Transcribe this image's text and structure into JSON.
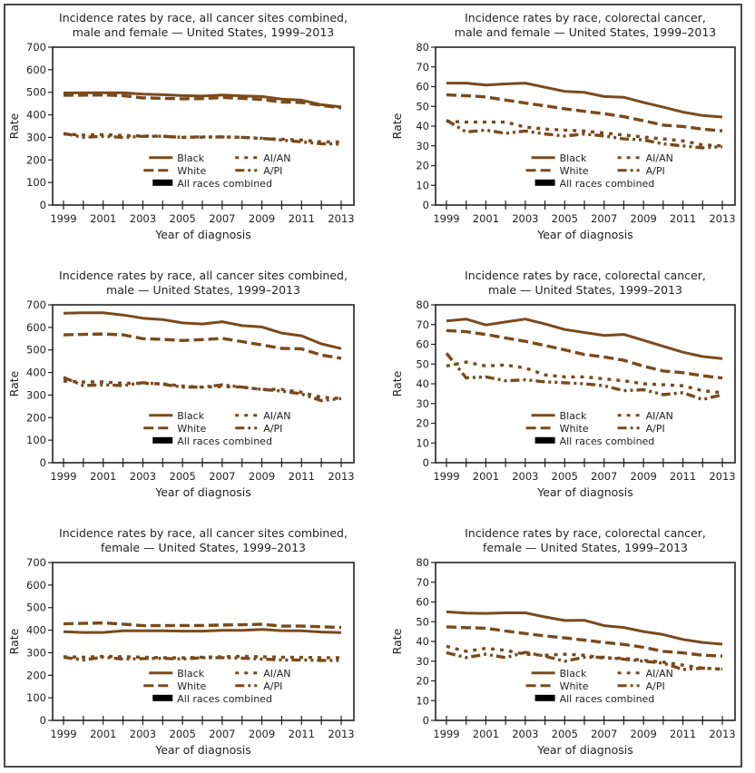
{
  "figure": {
    "colors": {
      "race": "#7a4a1c",
      "all_races": "#9a9a9a",
      "axis": "#222222"
    },
    "legend": [
      {
        "key": "black",
        "label": "Black",
        "style": "solid"
      },
      {
        "key": "aian",
        "label": "AI/AN",
        "style": "dotted"
      },
      {
        "key": "white",
        "label": "White",
        "style": "dashed"
      },
      {
        "key": "api",
        "label": "A/PI",
        "style": "dashdot"
      },
      {
        "key": "all",
        "label": "All races combined",
        "style": "band"
      }
    ]
  },
  "chart_data": [
    {
      "type": "line",
      "title": [
        "Incidence rates by race, all cancer sites combined,",
        "male and female — United States, 1999–2013"
      ],
      "xlabel": "Year of diagnosis",
      "ylabel": "Rate",
      "ylim": [
        0,
        700
      ],
      "yticks": [
        0,
        100,
        200,
        300,
        400,
        500,
        600,
        700
      ],
      "x": [
        1999,
        2000,
        2001,
        2002,
        2003,
        2004,
        2005,
        2006,
        2007,
        2008,
        2009,
        2010,
        2011,
        2012,
        2013
      ],
      "xtick_labels": [
        "1999",
        "2001",
        "2003",
        "2005",
        "2007",
        "2009",
        "2011",
        "2013"
      ],
      "legend_position": "lower-center",
      "series": [
        {
          "name": "Black",
          "key": "black",
          "values": [
            497,
            498,
            498,
            498,
            492,
            489,
            485,
            483,
            488,
            484,
            481,
            470,
            465,
            445,
            435
          ]
        },
        {
          "name": "White",
          "key": "white",
          "values": [
            487,
            487,
            488,
            485,
            475,
            473,
            471,
            472,
            477,
            473,
            468,
            457,
            455,
            442,
            431
          ]
        },
        {
          "name": "All races combined",
          "key": "all",
          "values": [
            482,
            483,
            484,
            481,
            470,
            468,
            466,
            467,
            471,
            467,
            462,
            452,
            450,
            437,
            427
          ]
        },
        {
          "name": "AI/AN",
          "key": "aian",
          "values": [
            315,
            310,
            312,
            308,
            306,
            305,
            300,
            301,
            302,
            300,
            295,
            292,
            288,
            280,
            280
          ]
        },
        {
          "name": "A/PI",
          "key": "api",
          "values": [
            318,
            300,
            305,
            300,
            305,
            305,
            300,
            302,
            302,
            300,
            296,
            288,
            280,
            272,
            270
          ]
        }
      ]
    },
    {
      "type": "line",
      "title": [
        "Incidence rates by race, colorectal cancer,",
        "male and female — United States, 1999–2013"
      ],
      "xlabel": "Year of diagnosis",
      "ylabel": "Rate",
      "ylim": [
        0,
        80
      ],
      "yticks": [
        0,
        10,
        20,
        30,
        40,
        50,
        60,
        70,
        80
      ],
      "x": [
        1999,
        2000,
        2001,
        2002,
        2003,
        2004,
        2005,
        2006,
        2007,
        2008,
        2009,
        2010,
        2011,
        2012,
        2013
      ],
      "xtick_labels": [
        "1999",
        "2001",
        "2003",
        "2005",
        "2007",
        "2009",
        "2011",
        "2013"
      ],
      "legend_position": "lower-center",
      "series": [
        {
          "name": "Black",
          "key": "black",
          "values": [
            61.8,
            61.8,
            60.8,
            61.4,
            61.8,
            59.7,
            57.6,
            57.1,
            55.0,
            54.6,
            52.0,
            49.6,
            47.1,
            45.4,
            44.6
          ]
        },
        {
          "name": "White",
          "key": "white",
          "values": [
            55.8,
            55.4,
            54.8,
            53.2,
            51.7,
            50.3,
            48.8,
            47.5,
            46.3,
            44.8,
            42.7,
            40.5,
            39.8,
            38.5,
            37.6
          ]
        },
        {
          "name": "All races combined",
          "key": "all",
          "values": [
            57.0,
            56.6,
            56.0,
            54.5,
            53.0,
            51.6,
            50.1,
            48.8,
            47.6,
            46.2,
            44.0,
            41.8,
            41.1,
            39.8,
            38.9
          ]
        },
        {
          "name": "AI/AN",
          "key": "aian",
          "values": [
            42.5,
            42.0,
            42.0,
            42.0,
            39.5,
            38.5,
            38.0,
            37.5,
            36.5,
            35.5,
            34.5,
            33.5,
            32.5,
            30.5,
            30.0
          ]
        },
        {
          "name": "A/PI",
          "key": "api",
          "values": [
            43.0,
            37.0,
            38.0,
            36.3,
            37.5,
            36.0,
            35.0,
            36.0,
            35.0,
            33.5,
            33.0,
            31.0,
            30.0,
            29.0,
            29.5
          ]
        }
      ]
    },
    {
      "type": "line",
      "title": [
        "Incidence rates by race, all cancer sites combined,",
        "male — United States, 1999–2013"
      ],
      "xlabel": "Year of diagnosis",
      "ylabel": "Rate",
      "ylim": [
        0,
        700
      ],
      "yticks": [
        0,
        100,
        200,
        300,
        400,
        500,
        600,
        700
      ],
      "x": [
        1999,
        2000,
        2001,
        2002,
        2003,
        2004,
        2005,
        2006,
        2007,
        2008,
        2009,
        2010,
        2011,
        2012,
        2013
      ],
      "xtick_labels": [
        "1999",
        "2001",
        "2003",
        "2005",
        "2007",
        "2009",
        "2011",
        "2013"
      ],
      "legend_position": "lower-center",
      "series": [
        {
          "name": "Black",
          "key": "black",
          "values": [
            663,
            665,
            665,
            655,
            641,
            635,
            620,
            615,
            625,
            608,
            602,
            575,
            563,
            527,
            506
          ]
        },
        {
          "name": "White",
          "key": "white",
          "values": [
            567,
            569,
            571,
            567,
            550,
            547,
            542,
            546,
            551,
            537,
            522,
            507,
            505,
            477,
            463
          ]
        },
        {
          "name": "All races combined",
          "key": "all",
          "values": [
            577,
            579,
            581,
            577,
            560,
            557,
            552,
            556,
            561,
            547,
            532,
            517,
            515,
            487,
            473
          ]
        },
        {
          "name": "AI/AN",
          "key": "aian",
          "values": [
            362,
            358,
            358,
            352,
            352,
            350,
            340,
            335,
            338,
            335,
            325,
            325,
            312,
            290,
            285
          ]
        },
        {
          "name": "A/PI",
          "key": "api",
          "values": [
            378,
            342,
            345,
            342,
            355,
            348,
            335,
            335,
            345,
            335,
            325,
            318,
            305,
            275,
            285
          ]
        }
      ]
    },
    {
      "type": "line",
      "title": [
        "Incidence rates by race, colorectal cancer,",
        "male — United States, 1999–2013"
      ],
      "xlabel": "Year of diagnosis",
      "ylabel": "Rate",
      "ylim": [
        0,
        80
      ],
      "yticks": [
        0,
        10,
        20,
        30,
        40,
        50,
        60,
        70,
        80
      ],
      "x": [
        1999,
        2000,
        2001,
        2002,
        2003,
        2004,
        2005,
        2006,
        2007,
        2008,
        2009,
        2010,
        2011,
        2012,
        2013
      ],
      "xtick_labels": [
        "1999",
        "2001",
        "2003",
        "2005",
        "2007",
        "2009",
        "2011",
        "2013"
      ],
      "legend_position": "lower-center",
      "series": [
        {
          "name": "Black",
          "key": "black",
          "values": [
            71.8,
            72.8,
            69.8,
            71.3,
            72.8,
            70.3,
            67.5,
            66.0,
            64.5,
            65.0,
            62.0,
            59.0,
            56.0,
            53.8,
            52.8
          ]
        },
        {
          "name": "White",
          "key": "white",
          "values": [
            67.0,
            66.4,
            65.0,
            63.2,
            61.5,
            59.4,
            57.2,
            54.8,
            53.6,
            51.9,
            48.9,
            46.5,
            45.6,
            44.1,
            42.9
          ]
        },
        {
          "name": "All races combined",
          "key": "all",
          "values": [
            68.0,
            67.4,
            66.0,
            64.2,
            62.6,
            60.5,
            58.4,
            56.0,
            54.8,
            53.2,
            50.2,
            47.8,
            46.9,
            45.4,
            44.2
          ]
        },
        {
          "name": "AI/AN",
          "key": "aian",
          "values": [
            49.0,
            51.0,
            49.0,
            49.5,
            48.0,
            44.5,
            43.5,
            43.5,
            42.5,
            41.5,
            40.0,
            39.5,
            39.0,
            36.5,
            35.5
          ]
        },
        {
          "name": "A/PI",
          "key": "api",
          "values": [
            55.5,
            43.0,
            43.5,
            41.5,
            42.0,
            41.0,
            40.5,
            40.0,
            39.0,
            36.5,
            37.0,
            34.5,
            35.5,
            32.0,
            34.5
          ]
        }
      ]
    },
    {
      "type": "line",
      "title": [
        "Incidence rates by race, all cancer sites combined,",
        "female — United States, 1999–2013"
      ],
      "xlabel": "Year of diagnosis",
      "ylabel": "Rate",
      "ylim": [
        0,
        700
      ],
      "yticks": [
        0,
        100,
        200,
        300,
        400,
        500,
        600,
        700
      ],
      "x": [
        1999,
        2000,
        2001,
        2002,
        2003,
        2004,
        2005,
        2006,
        2007,
        2008,
        2009,
        2010,
        2011,
        2012,
        2013
      ],
      "xtick_labels": [
        "1999",
        "2001",
        "2003",
        "2005",
        "2007",
        "2009",
        "2011",
        "2013"
      ],
      "legend_position": "lower-center",
      "series": [
        {
          "name": "Black",
          "key": "black",
          "values": [
            393,
            390,
            390,
            397,
            397,
            397,
            396,
            396,
            399,
            399,
            403,
            398,
            397,
            392,
            389
          ]
        },
        {
          "name": "White",
          "key": "white",
          "values": [
            428,
            430,
            432,
            427,
            420,
            420,
            421,
            421,
            423,
            424,
            426,
            418,
            418,
            415,
            412
          ]
        },
        {
          "name": "All races combined",
          "key": "all",
          "values": [
            418,
            420,
            421,
            415,
            409,
            408,
            410,
            410,
            412,
            412,
            415,
            407,
            406,
            403,
            400
          ]
        },
        {
          "name": "AI/AN",
          "key": "aian",
          "values": [
            282,
            280,
            284,
            282,
            280,
            278,
            277,
            280,
            282,
            284,
            282,
            280,
            279,
            278,
            278
          ]
        },
        {
          "name": "A/PI",
          "key": "api",
          "values": [
            280,
            268,
            280,
            272,
            274,
            275,
            272,
            278,
            278,
            276,
            272,
            268,
            268,
            266,
            266
          ]
        }
      ]
    },
    {
      "type": "line",
      "title": [
        "Incidence rates by race, colorectal cancer,",
        "female — United States, 1999–2013"
      ],
      "xlabel": "Year of diagnosis",
      "ylabel": "Rate",
      "ylim": [
        0,
        80
      ],
      "yticks": [
        0,
        10,
        20,
        30,
        40,
        50,
        60,
        70,
        80
      ],
      "x": [
        1999,
        2000,
        2001,
        2002,
        2003,
        2004,
        2005,
        2006,
        2007,
        2008,
        2009,
        2010,
        2011,
        2012,
        2013
      ],
      "xtick_labels": [
        "1999",
        "2001",
        "2003",
        "2005",
        "2007",
        "2009",
        "2011",
        "2013"
      ],
      "legend_position": "lower-center",
      "series": [
        {
          "name": "Black",
          "key": "black",
          "values": [
            55.0,
            54.4,
            54.2,
            54.5,
            54.5,
            52.4,
            50.6,
            50.7,
            48.0,
            47.1,
            45.0,
            43.5,
            41.0,
            39.5,
            38.6
          ]
        },
        {
          "name": "White",
          "key": "white",
          "values": [
            47.4,
            47.0,
            46.7,
            45.3,
            44.0,
            42.8,
            41.8,
            40.7,
            39.5,
            38.5,
            37.0,
            35.0,
            34.2,
            33.0,
            32.6
          ]
        },
        {
          "name": "All races combined",
          "key": "all",
          "values": [
            48.6,
            48.2,
            47.9,
            46.6,
            45.3,
            44.1,
            43.1,
            42.1,
            40.9,
            39.9,
            38.4,
            36.3,
            35.5,
            34.5,
            33.9
          ]
        },
        {
          "name": "AI/AN",
          "key": "aian",
          "values": [
            37.5,
            35.0,
            36.5,
            35.5,
            33.5,
            33.0,
            33.5,
            33.0,
            31.5,
            31.5,
            30.5,
            29.5,
            28.0,
            26.5,
            26.0
          ]
        },
        {
          "name": "A/PI",
          "key": "api",
          "values": [
            34.3,
            31.8,
            33.5,
            31.8,
            34.5,
            32.5,
            30.0,
            32.0,
            32.0,
            31.0,
            30.0,
            29.0,
            25.8,
            26.5,
            26.0
          ]
        }
      ]
    }
  ]
}
